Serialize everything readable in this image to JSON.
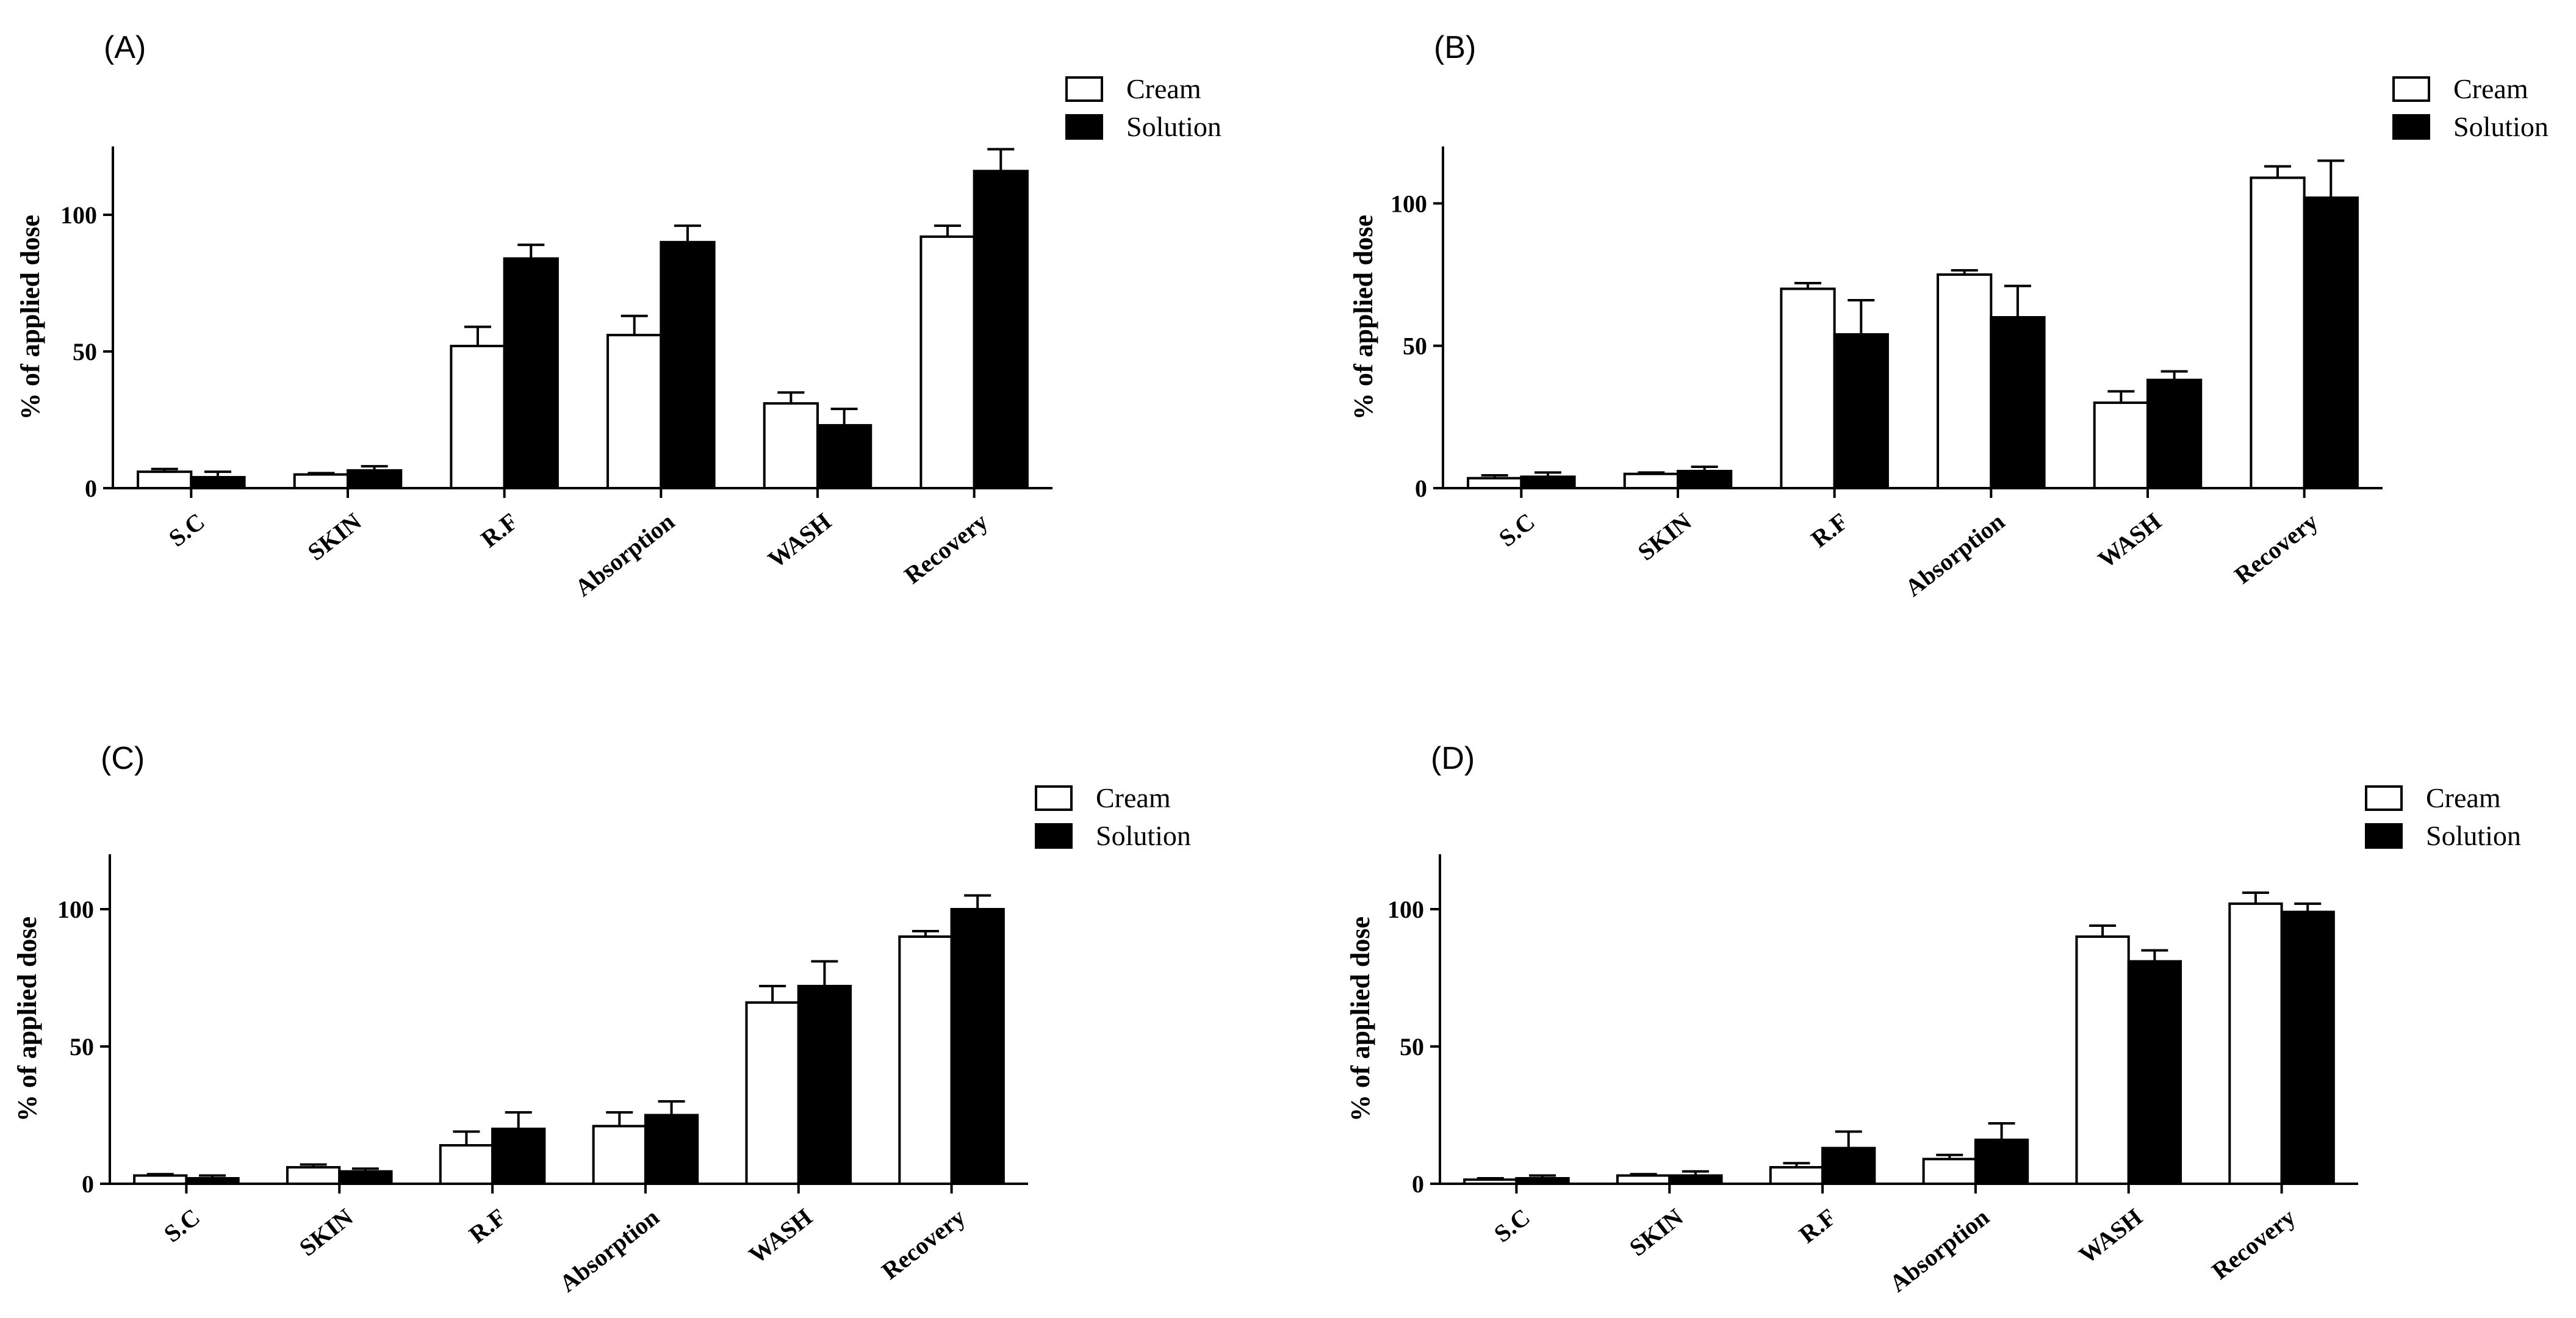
{
  "chart_data": [
    {
      "type": "bar",
      "panel": "(A)",
      "categories": [
        "S.C",
        "SKIN",
        "R.F",
        "Absorption",
        "WASH",
        "Recovery"
      ],
      "series": [
        {
          "name": "Cream",
          "values": [
            6,
            5,
            52,
            56,
            31,
            92
          ],
          "errors": [
            1,
            0.5,
            7,
            7,
            4,
            4
          ],
          "color": "#ffffff"
        },
        {
          "name": "Solution",
          "values": [
            4,
            6.5,
            84,
            90,
            23,
            116
          ],
          "errors": [
            2,
            1.5,
            5,
            6,
            6,
            8
          ],
          "color": "#000000"
        }
      ],
      "ylabel": "% of applied dose",
      "ylim": [
        0,
        125
      ],
      "yticks": [
        0,
        50,
        100
      ],
      "legend": "top-right"
    },
    {
      "type": "bar",
      "panel": "(B)",
      "categories": [
        "S.C",
        "SKIN",
        "R.F",
        "Absorption",
        "WASH",
        "Recovery"
      ],
      "series": [
        {
          "name": "Cream",
          "values": [
            3.5,
            5,
            70,
            75,
            30,
            109
          ],
          "errors": [
            1,
            0.5,
            2,
            1.5,
            4,
            4
          ],
          "color": "#ffffff"
        },
        {
          "name": "Solution",
          "values": [
            4,
            6,
            54,
            60,
            38,
            102
          ],
          "errors": [
            1.5,
            1.5,
            12,
            11,
            3,
            13
          ],
          "color": "#000000"
        }
      ],
      "ylabel": "% of applied dose",
      "ylim": [
        0,
        120
      ],
      "yticks": [
        0,
        50,
        100
      ],
      "legend": "top-right"
    },
    {
      "type": "bar",
      "panel": "(C)",
      "categories": [
        "S.C",
        "SKIN",
        "R.F",
        "Absorption",
        "WASH",
        "Recovery"
      ],
      "series": [
        {
          "name": "Cream",
          "values": [
            3,
            6,
            14,
            21,
            66,
            90
          ],
          "errors": [
            0.5,
            1,
            5,
            5,
            6,
            2
          ],
          "color": "#ffffff"
        },
        {
          "name": "Solution",
          "values": [
            2,
            4.5,
            20,
            25,
            72,
            100
          ],
          "errors": [
            1,
            1,
            6,
            5,
            9,
            5
          ],
          "color": "#000000"
        }
      ],
      "ylabel": "% of applied dose",
      "ylim": [
        0,
        120
      ],
      "yticks": [
        0,
        50,
        100
      ],
      "legend": "top-right"
    },
    {
      "type": "bar",
      "panel": "(D)",
      "categories": [
        "S.C",
        "SKIN",
        "R.F",
        "Absorption",
        "WASH",
        "Recovery"
      ],
      "series": [
        {
          "name": "Cream",
          "values": [
            1.5,
            3,
            6,
            9,
            90,
            102
          ],
          "errors": [
            0.5,
            0.5,
            1.5,
            1.5,
            4,
            4
          ],
          "color": "#ffffff"
        },
        {
          "name": "Solution",
          "values": [
            2,
            3,
            13,
            16,
            81,
            99
          ],
          "errors": [
            1,
            1.5,
            6,
            6,
            4,
            3
          ],
          "color": "#000000"
        }
      ],
      "ylabel": "% of applied dose",
      "ylim": [
        0,
        120
      ],
      "yticks": [
        0,
        50,
        100
      ],
      "legend": "top-right"
    }
  ]
}
